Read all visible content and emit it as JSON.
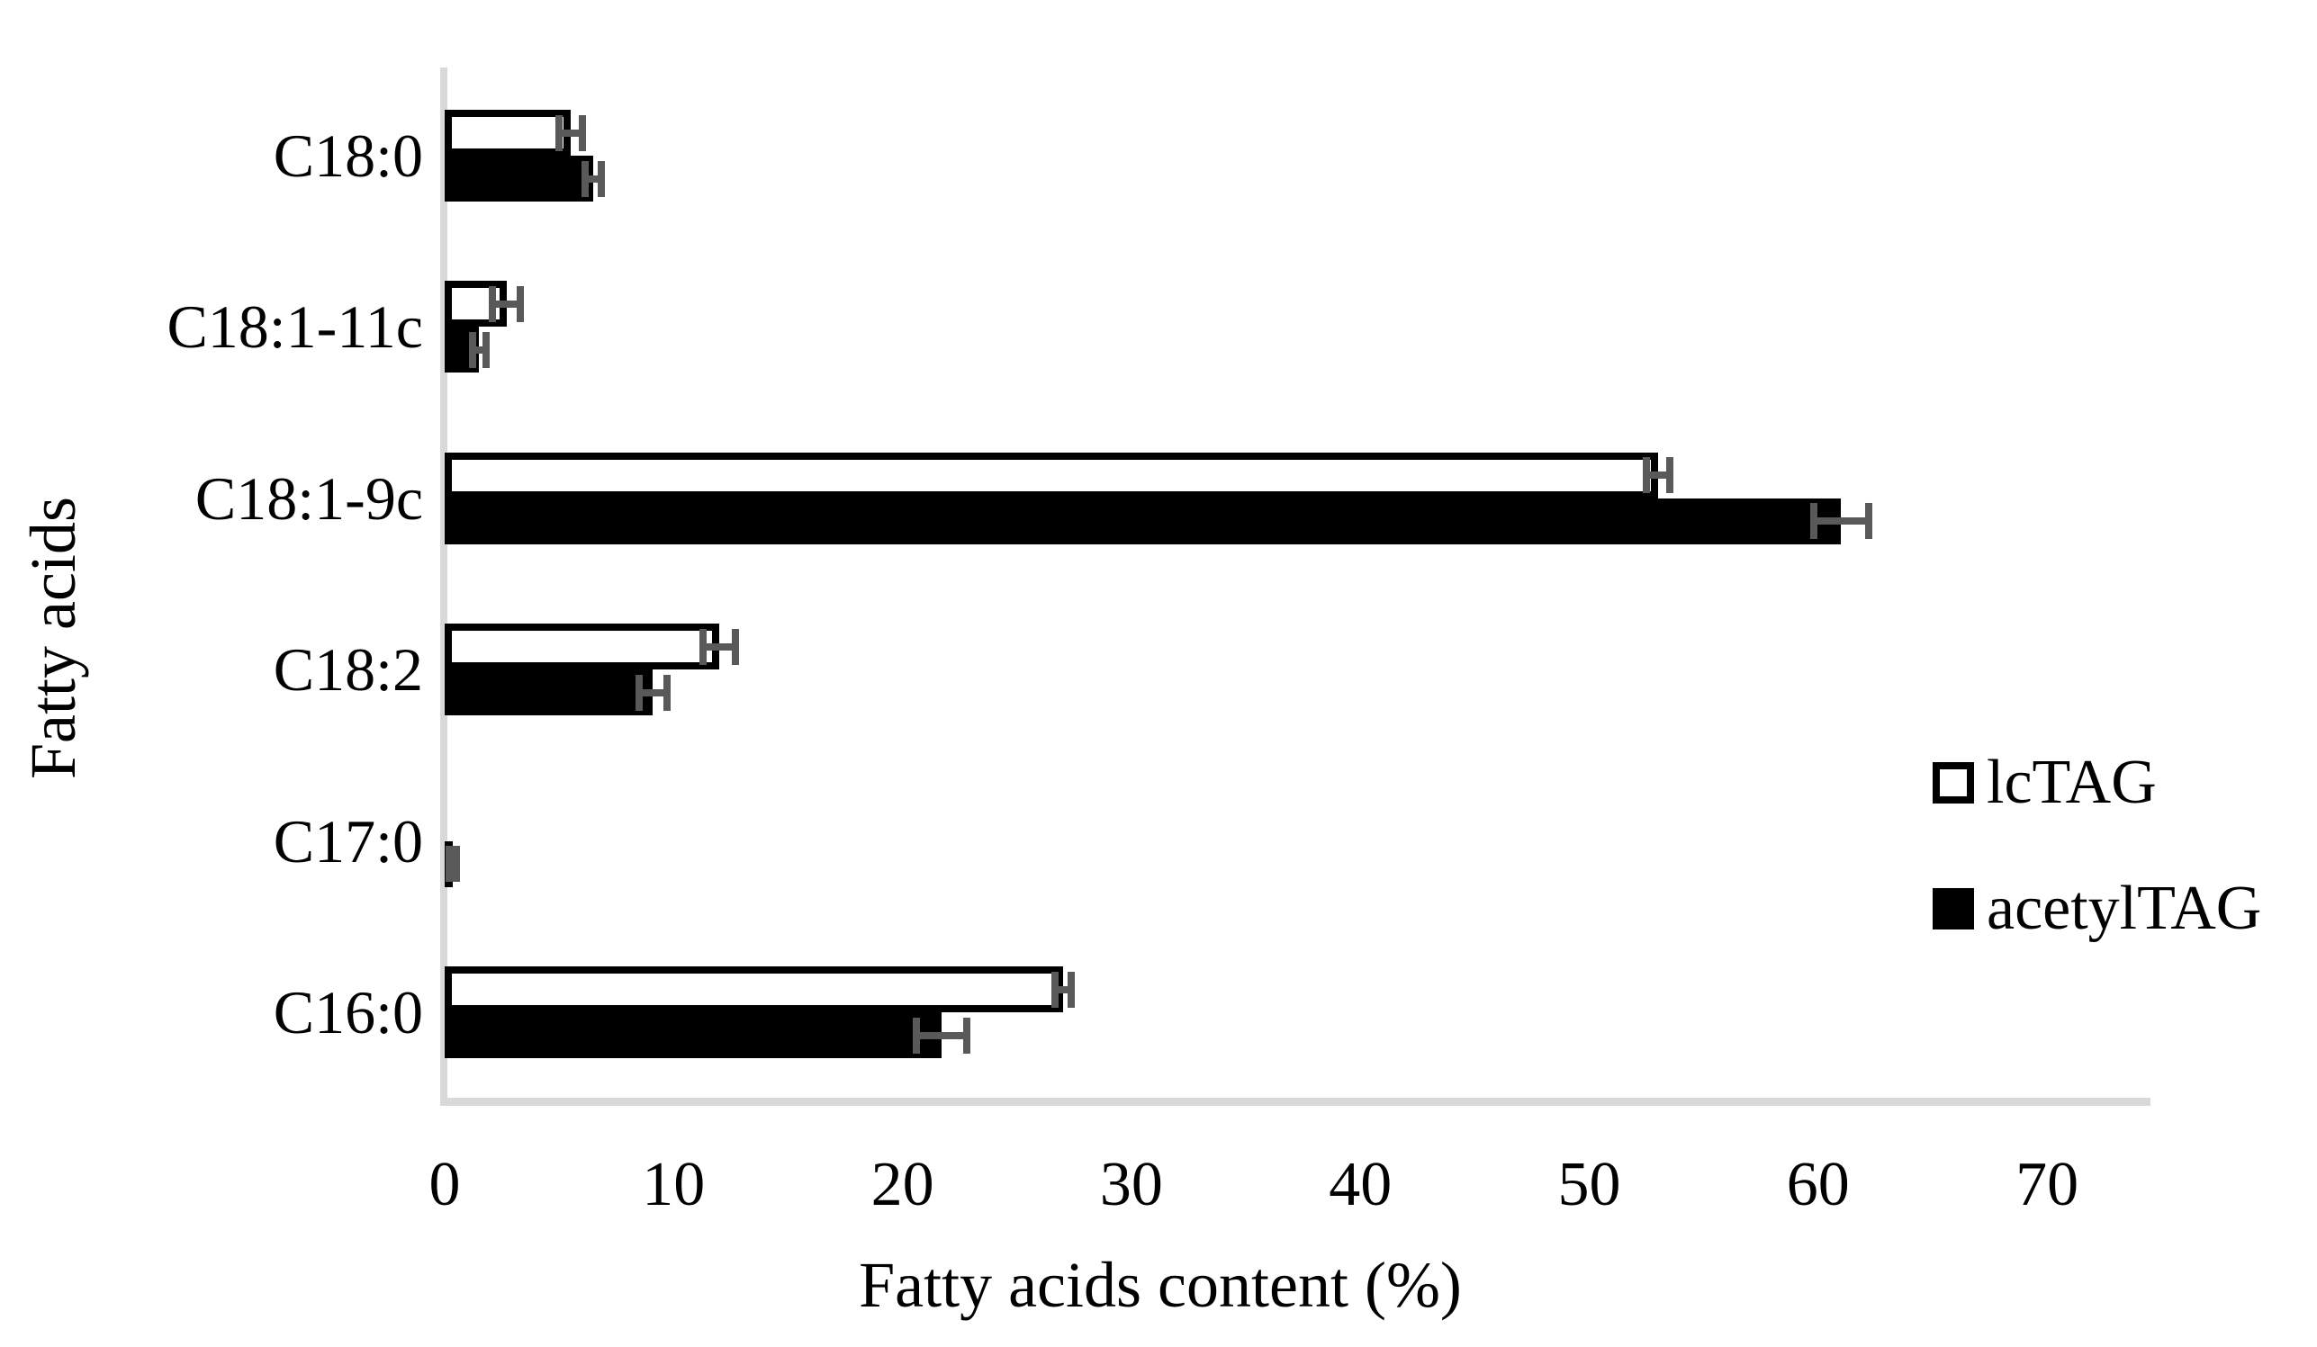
{
  "chart_data": {
    "type": "bar",
    "orientation": "horizontal",
    "title": "",
    "xlabel": "Fatty acids content (%)",
    "ylabel": "Fatty acids",
    "xlim": [
      0,
      70
    ],
    "xticks": [
      "0",
      "10",
      "20",
      "30",
      "40",
      "50",
      "60",
      "70"
    ],
    "grid": false,
    "legend_position": "right-middle",
    "categories_top_to_bottom": [
      "C18:0",
      "C18:1-11c",
      "C18:1-9c",
      "C18:2",
      "C17:0",
      "C16:0"
    ],
    "series": [
      {
        "name": "lcTAG",
        "swatch": "white-with-black-outline",
        "fill": "#ffffff",
        "outline": "#000000",
        "values": [
          5.5,
          2.7,
          53.0,
          12.0,
          0.0,
          27.0
        ],
        "errors": [
          0.5,
          0.6,
          0.5,
          0.7,
          0.0,
          0.35
        ]
      },
      {
        "name": "acetylTAG",
        "swatch": "black-filled",
        "fill": "#000000",
        "outline": "#000000",
        "values": [
          6.5,
          1.5,
          61.0,
          9.1,
          0.35,
          21.7
        ],
        "errors": [
          0.35,
          0.3,
          1.2,
          0.6,
          0.15,
          1.1
        ]
      }
    ],
    "error_bar_color": "#595959",
    "axis_line_color": "#d9d9d9"
  }
}
